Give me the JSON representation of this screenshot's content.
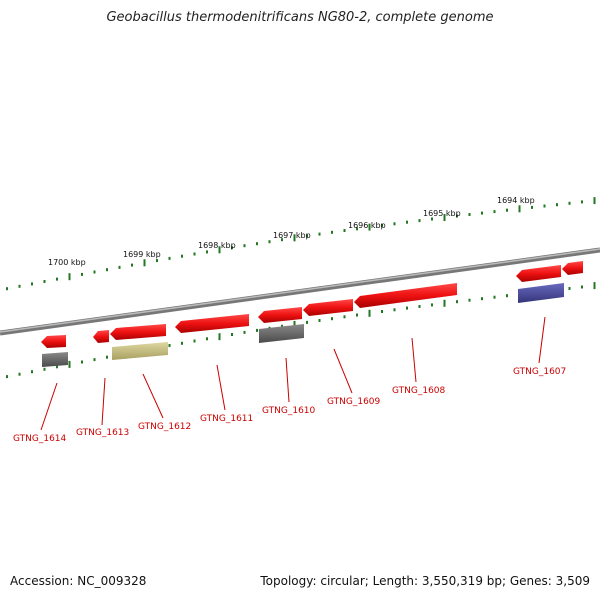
{
  "title": "Geobacillus thermodenitrificans NG80-2, complete genome",
  "footer": {
    "accession": "Accession: NC_009328",
    "summary": "Topology: circular; Length: 3,550,319 bp; Genes: 3,509"
  },
  "scale_labels": [
    "1700 kbp",
    "1699 kbp",
    "1698 kbp",
    "1697 kbp",
    "1696 kbp",
    "1695 kbp",
    "1694 kbp"
  ],
  "genes": [
    "GTNG_1614",
    "GTNG_1613",
    "GTNG_1612",
    "GTNG_1611",
    "GTNG_1610",
    "GTNG_1609",
    "GTNG_1608",
    "GTNG_1607"
  ],
  "colors": {
    "gene": "#ee1111",
    "gene_shadow": "#bb0000",
    "gray_feature": "#666666",
    "khaki_feature": "#c8c080",
    "purple_feature": "#4a4a9a",
    "tick": "#227722",
    "label": "#cc0000",
    "backbone": "#888888"
  }
}
